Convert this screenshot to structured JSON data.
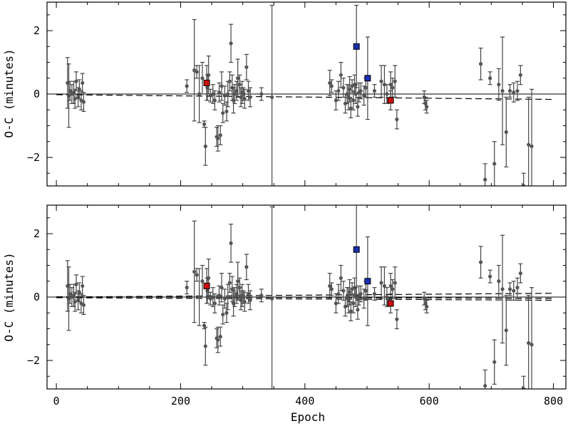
{
  "chart_data": [
    {
      "type": "scatter",
      "panel": "top",
      "xlabel": "",
      "ylabel": "O-C (minutes)",
      "xlim": [
        -15,
        820
      ],
      "ylim": [
        -2.9,
        2.9
      ],
      "xticks": [
        0,
        200,
        400,
        600,
        800
      ],
      "yticks": [
        -2,
        0,
        2
      ],
      "ytick_labels": [
        "−2",
        "0",
        "2"
      ],
      "xtick_labels_visible": false,
      "grid": false,
      "colors": {
        "points": "#555555",
        "highlight_blue": "#1a2fb0",
        "highlight_red": "#d01010",
        "fit_lines": "#000000"
      },
      "reference_line": {
        "y": 0,
        "style": "solid"
      },
      "fit_lines": [
        {
          "style": "dashed",
          "x": [
            0,
            800
          ],
          "y": [
            -0.02,
            -0.17
          ]
        }
      ],
      "series": [
        {
          "marker": "circle",
          "points": [
            [
              18,
              0.35,
              0.8
            ],
            [
              20,
              -0.05,
              1.0
            ],
            [
              22,
              0.1,
              0.3
            ],
            [
              25,
              0.0,
              0.3
            ],
            [
              28,
              0.05,
              0.35
            ],
            [
              30,
              -0.15,
              0.3
            ],
            [
              32,
              0.4,
              0.3
            ],
            [
              35,
              -0.1,
              0.3
            ],
            [
              37,
              0.15,
              0.3
            ],
            [
              40,
              -0.2,
              0.3
            ],
            [
              42,
              0.35,
              0.3
            ],
            [
              44,
              -0.25,
              0.3
            ],
            [
              210,
              0.25,
              0.2
            ],
            [
              222,
              0.75,
              1.6
            ],
            [
              226,
              0.7,
              0.2
            ],
            [
              230,
              0.0,
              0.9
            ],
            [
              235,
              0.5,
              0.5
            ],
            [
              238,
              -0.95,
              0.1
            ],
            [
              240,
              -1.65,
              0.6
            ],
            [
              243,
              0.2,
              0.4
            ],
            [
              245,
              0.6,
              0.6
            ],
            [
              248,
              -0.05,
              0.2
            ],
            [
              252,
              0.0,
              0.3
            ],
            [
              255,
              -0.2,
              0.3
            ],
            [
              258,
              -1.35,
              0.3
            ],
            [
              260,
              -1.4,
              0.4
            ],
            [
              262,
              0.05,
              0.3
            ],
            [
              264,
              -1.3,
              0.3
            ],
            [
              266,
              0.25,
              0.45
            ],
            [
              268,
              -0.6,
              0.3
            ],
            [
              271,
              -0.05,
              0.3
            ],
            [
              274,
              -0.55,
              0.3
            ],
            [
              276,
              0.0,
              0.4
            ],
            [
              279,
              0.4,
              0.3
            ],
            [
              281,
              1.6,
              0.6
            ],
            [
              283,
              0.2,
              0.4
            ],
            [
              285,
              -0.2,
              0.4
            ],
            [
              287,
              0.0,
              0.3
            ],
            [
              290,
              0.1,
              0.3
            ],
            [
              292,
              0.5,
              0.6
            ],
            [
              295,
              0.3,
              0.3
            ],
            [
              297,
              -0.1,
              0.3
            ],
            [
              299,
              0.05,
              0.35
            ],
            [
              301,
              0.0,
              0.2
            ],
            [
              303,
              -0.15,
              0.3
            ],
            [
              306,
              0.85,
              0.4
            ],
            [
              309,
              0.1,
              0.3
            ],
            [
              312,
              -0.1,
              0.3
            ],
            [
              330,
              0.0,
              0.2
            ],
            [
              347,
              -0.1,
              2.9
            ],
            [
              440,
              0.35,
              0.4
            ],
            [
              443,
              0.25,
              0.2
            ],
            [
              450,
              -0.2,
              0.3
            ],
            [
              454,
              0.1,
              0.3
            ],
            [
              458,
              0.6,
              0.4
            ],
            [
              462,
              0.2,
              0.3
            ],
            [
              465,
              -0.3,
              0.3
            ],
            [
              468,
              0.0,
              0.3
            ],
            [
              470,
              -0.1,
              0.4
            ],
            [
              472,
              0.15,
              0.4
            ],
            [
              474,
              -0.45,
              0.3
            ],
            [
              476,
              0.25,
              0.2
            ],
            [
              478,
              -0.2,
              0.3
            ],
            [
              480,
              0.3,
              0.3
            ],
            [
              482,
              0.0,
              0.3
            ],
            [
              485,
              -0.4,
              0.3
            ],
            [
              487,
              0.05,
              0.3
            ],
            [
              490,
              0.1,
              0.25
            ],
            [
              495,
              -0.05,
              0.3
            ],
            [
              498,
              0.2,
              0.3
            ],
            [
              512,
              0.1,
              0.2
            ],
            [
              523,
              0.4,
              0.5
            ],
            [
              528,
              0.3,
              0.6
            ],
            [
              532,
              0.0,
              0.3
            ],
            [
              538,
              0.3,
              0.4
            ],
            [
              541,
              0.2,
              0.3
            ],
            [
              545,
              0.4,
              0.5
            ],
            [
              548,
              -0.8,
              0.3
            ],
            [
              592,
              -0.1,
              0.2
            ],
            [
              594,
              -0.3,
              0.2
            ],
            [
              596,
              -0.4,
              0.2
            ],
            [
              683,
              0.95,
              0.5
            ],
            [
              690,
              -2.7,
              0.5
            ],
            [
              698,
              0.5,
              0.2
            ],
            [
              705,
              -2.2,
              0.7
            ],
            [
              712,
              0.3,
              0.5
            ],
            [
              718,
              0.1,
              1.7
            ],
            [
              724,
              -1.2,
              1.1
            ],
            [
              730,
              0.1,
              0.2
            ],
            [
              736,
              0.05,
              0.3
            ],
            [
              742,
              0.1,
              0.3
            ],
            [
              747,
              0.6,
              0.3
            ],
            [
              752,
              -2.9,
              0.4
            ],
            [
              760,
              -1.6,
              1.5
            ],
            [
              765,
              -1.65,
              1.8
            ]
          ]
        },
        {
          "marker": "square",
          "color": "#1a2fb0",
          "points": [
            [
              483,
              1.5,
              1.3
            ],
            [
              501,
              0.5,
              1.3
            ]
          ]
        },
        {
          "marker": "square",
          "color": "#d01010",
          "points": [
            [
              242,
              0.35,
              0.55
            ],
            [
              538,
              -0.2,
              0.3
            ]
          ]
        }
      ]
    },
    {
      "type": "scatter",
      "panel": "bottom",
      "xlabel": "Epoch",
      "ylabel": "O-C (minutes)",
      "xlim": [
        -15,
        820
      ],
      "ylim": [
        -2.9,
        2.9
      ],
      "xticks": [
        0,
        200,
        400,
        600,
        800
      ],
      "xtick_labels": [
        "0",
        "200",
        "400",
        "600",
        "800"
      ],
      "yticks": [
        -2,
        0,
        2
      ],
      "ytick_labels": [
        "−2",
        "0",
        "2"
      ],
      "grid": false,
      "colors": {
        "points": "#555555",
        "highlight_blue": "#1a2fb0",
        "highlight_red": "#d01010",
        "fit_lines": "#000000"
      },
      "reference_line": {
        "y": 0,
        "style": "solid"
      },
      "fit_lines": [
        {
          "style": "dashed",
          "x": [
            0,
            800
          ],
          "y": [
            0.0,
            0.12
          ]
        },
        {
          "style": "dashed",
          "x": [
            0,
            800
          ],
          "y": [
            -0.02,
            -0.1
          ]
        },
        {
          "style": "dashed",
          "x": [
            0,
            800
          ],
          "y": [
            0.01,
            -0.04
          ]
        }
      ],
      "series": [
        {
          "marker": "circle",
          "points": [
            [
              18,
              0.35,
              0.8
            ],
            [
              20,
              -0.05,
              1.0
            ],
            [
              22,
              0.1,
              0.3
            ],
            [
              25,
              0.0,
              0.3
            ],
            [
              28,
              0.05,
              0.35
            ],
            [
              30,
              -0.15,
              0.3
            ],
            [
              32,
              0.4,
              0.3
            ],
            [
              35,
              -0.1,
              0.3
            ],
            [
              37,
              0.15,
              0.3
            ],
            [
              40,
              -0.2,
              0.3
            ],
            [
              42,
              0.35,
              0.3
            ],
            [
              44,
              -0.25,
              0.3
            ],
            [
              210,
              0.3,
              0.2
            ],
            [
              222,
              0.8,
              1.6
            ],
            [
              226,
              0.7,
              0.2
            ],
            [
              230,
              0.0,
              0.9
            ],
            [
              235,
              0.5,
              0.5
            ],
            [
              238,
              -0.9,
              0.1
            ],
            [
              240,
              -1.55,
              0.6
            ],
            [
              243,
              0.2,
              0.4
            ],
            [
              245,
              0.6,
              0.6
            ],
            [
              248,
              -0.05,
              0.2
            ],
            [
              252,
              0.0,
              0.3
            ],
            [
              255,
              -0.2,
              0.3
            ],
            [
              258,
              -1.3,
              0.3
            ],
            [
              260,
              -1.35,
              0.4
            ],
            [
              262,
              0.05,
              0.3
            ],
            [
              264,
              -1.25,
              0.3
            ],
            [
              266,
              0.3,
              0.45
            ],
            [
              268,
              -0.55,
              0.3
            ],
            [
              271,
              -0.05,
              0.3
            ],
            [
              274,
              -0.5,
              0.3
            ],
            [
              276,
              0.0,
              0.4
            ],
            [
              279,
              0.45,
              0.3
            ],
            [
              281,
              1.7,
              0.6
            ],
            [
              283,
              0.25,
              0.4
            ],
            [
              285,
              -0.2,
              0.4
            ],
            [
              287,
              0.0,
              0.3
            ],
            [
              290,
              0.1,
              0.3
            ],
            [
              292,
              0.5,
              0.6
            ],
            [
              295,
              0.3,
              0.3
            ],
            [
              297,
              -0.1,
              0.3
            ],
            [
              299,
              0.05,
              0.35
            ],
            [
              301,
              0.0,
              0.2
            ],
            [
              303,
              -0.15,
              0.3
            ],
            [
              306,
              0.95,
              0.4
            ],
            [
              309,
              0.1,
              0.3
            ],
            [
              312,
              -0.1,
              0.3
            ],
            [
              330,
              0.05,
              0.2
            ],
            [
              347,
              -0.05,
              2.9
            ],
            [
              440,
              0.35,
              0.4
            ],
            [
              443,
              0.25,
              0.2
            ],
            [
              450,
              -0.2,
              0.3
            ],
            [
              454,
              0.1,
              0.3
            ],
            [
              458,
              0.6,
              0.4
            ],
            [
              462,
              0.2,
              0.3
            ],
            [
              465,
              -0.3,
              0.3
            ],
            [
              468,
              0.0,
              0.3
            ],
            [
              470,
              -0.1,
              0.4
            ],
            [
              472,
              0.15,
              0.4
            ],
            [
              474,
              -0.45,
              0.3
            ],
            [
              476,
              0.25,
              0.2
            ],
            [
              478,
              -0.2,
              0.3
            ],
            [
              480,
              0.3,
              0.3
            ],
            [
              482,
              0.0,
              0.3
            ],
            [
              485,
              -0.4,
              0.3
            ],
            [
              487,
              0.05,
              0.3
            ],
            [
              490,
              0.1,
              0.25
            ],
            [
              495,
              -0.05,
              0.3
            ],
            [
              498,
              0.2,
              0.3
            ],
            [
              512,
              0.1,
              0.2
            ],
            [
              523,
              0.45,
              0.5
            ],
            [
              528,
              0.35,
              0.6
            ],
            [
              532,
              0.0,
              0.3
            ],
            [
              538,
              0.35,
              0.4
            ],
            [
              541,
              0.25,
              0.3
            ],
            [
              545,
              0.45,
              0.5
            ],
            [
              548,
              -0.7,
              0.3
            ],
            [
              592,
              -0.05,
              0.2
            ],
            [
              594,
              -0.2,
              0.2
            ],
            [
              596,
              -0.3,
              0.2
            ],
            [
              683,
              1.1,
              0.5
            ],
            [
              690,
              -2.8,
              0.5
            ],
            [
              698,
              0.65,
              0.2
            ],
            [
              705,
              -2.05,
              0.7
            ],
            [
              712,
              0.5,
              0.5
            ],
            [
              718,
              0.25,
              1.7
            ],
            [
              724,
              -1.05,
              1.1
            ],
            [
              730,
              0.25,
              0.2
            ],
            [
              736,
              0.2,
              0.3
            ],
            [
              742,
              0.3,
              0.3
            ],
            [
              747,
              0.75,
              0.3
            ],
            [
              752,
              -2.9,
              0.4
            ],
            [
              760,
              -1.45,
              1.5
            ],
            [
              765,
              -1.5,
              1.8
            ]
          ]
        },
        {
          "marker": "square",
          "color": "#1a2fb0",
          "points": [
            [
              483,
              1.5,
              1.45
            ],
            [
              501,
              0.5,
              1.4
            ]
          ]
        },
        {
          "marker": "square",
          "color": "#d01010",
          "points": [
            [
              242,
              0.35,
              0.55
            ],
            [
              538,
              -0.2,
              0.3
            ]
          ]
        }
      ]
    }
  ]
}
